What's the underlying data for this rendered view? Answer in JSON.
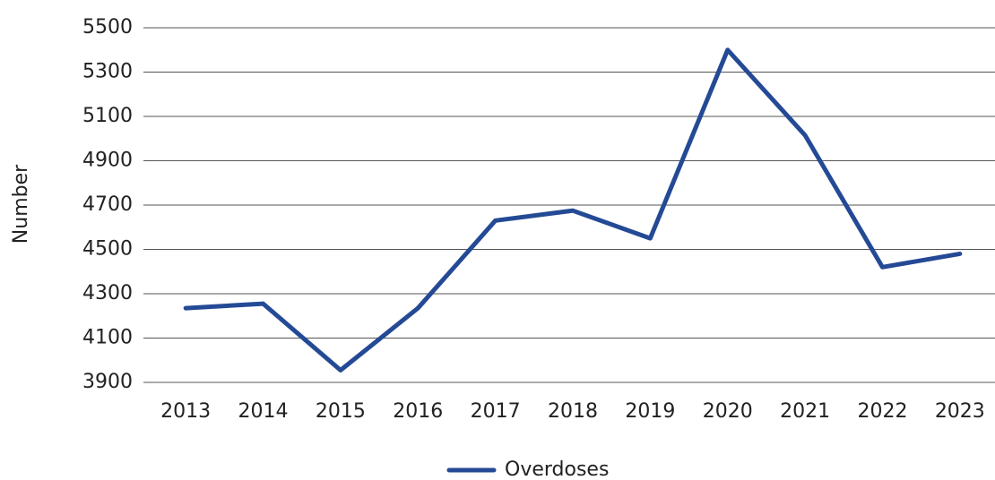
{
  "chart_data": {
    "type": "line",
    "y_label": "Number",
    "categories": [
      "2013",
      "2014",
      "2015",
      "2016",
      "2017",
      "2018",
      "2019",
      "2020",
      "2021",
      "2022",
      "2023"
    ],
    "series": [
      {
        "name": "Overdoses",
        "color": "#244a95",
        "values": [
          4235,
          4255,
          3955,
          4235,
          4630,
          4675,
          4550,
          5400,
          5015,
          4420,
          4480
        ]
      }
    ],
    "ylim": [
      3900,
      5500
    ],
    "yticks": [
      3900,
      4100,
      4300,
      4500,
      4700,
      4900,
      5100,
      5300,
      5500
    ],
    "grid": true,
    "legend": "bottom"
  }
}
